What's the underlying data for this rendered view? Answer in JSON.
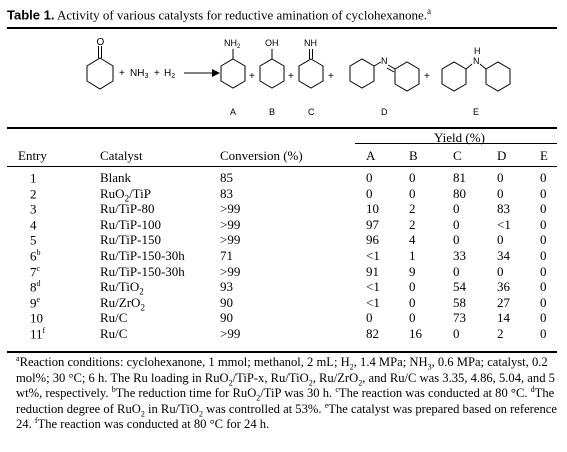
{
  "caption": {
    "label": "Table 1.",
    "text": " Activity of various catalysts for reductive amination of cyclohexanone.",
    "mark": "a"
  },
  "scheme": {
    "plus1": "+",
    "nh3": "NH",
    "nh3_sub": "3",
    "plus2": "+",
    "h2": "H",
    "h2_sub": "2",
    "groups": {
      "a": "NH",
      "a_sub": "2",
      "b": "OH",
      "c": "NH",
      "d": "N",
      "e": "H",
      "e2": "N"
    },
    "plus_signs": [
      "+",
      "+",
      "+",
      "+"
    ],
    "product_labels": [
      "A",
      "B",
      "C",
      "D",
      "E"
    ]
  },
  "table": {
    "yield_header": "Yield (%)",
    "columns": [
      "Entry",
      "Catalyst",
      "Conversion (%)",
      "A",
      "B",
      "C",
      "D",
      "E"
    ],
    "rows": [
      {
        "entry": "1",
        "entry_sup": "",
        "cat": "Blank",
        "cat_sub": "",
        "cat_tail": "",
        "conv": "85",
        "a": "0",
        "b": "0",
        "c": "81",
        "d": "0",
        "e": "0"
      },
      {
        "entry": "2",
        "entry_sup": "",
        "cat": "RuO",
        "cat_sub": "2",
        "cat_tail": "/TiP",
        "conv": "83",
        "a": "0",
        "b": "0",
        "c": "80",
        "d": "0",
        "e": "0"
      },
      {
        "entry": "3",
        "entry_sup": "",
        "cat": "Ru/TiP-80",
        "cat_sub": "",
        "cat_tail": "",
        "conv": ">99",
        "a": "10",
        "b": "2",
        "c": "0",
        "d": "83",
        "e": "0"
      },
      {
        "entry": "4",
        "entry_sup": "",
        "cat": "Ru/TiP-100",
        "cat_sub": "",
        "cat_tail": "",
        "conv": ">99",
        "a": "97",
        "b": "2",
        "c": "0",
        "d": "<1",
        "e": "0"
      },
      {
        "entry": "5",
        "entry_sup": "",
        "cat": "Ru/TiP-150",
        "cat_sub": "",
        "cat_tail": "",
        "conv": ">99",
        "a": "96",
        "b": "4",
        "c": "0",
        "d": "0",
        "e": "0"
      },
      {
        "entry": "6",
        "entry_sup": "b",
        "cat": "Ru/TiP-150-30h",
        "cat_sub": "",
        "cat_tail": "",
        "conv": "71",
        "a": "<1",
        "b": "1",
        "c": "33",
        "d": "34",
        "e": "0"
      },
      {
        "entry": "7",
        "entry_sup": "c",
        "cat": "Ru/TiP-150-30h",
        "cat_sub": "",
        "cat_tail": "",
        "conv": ">99",
        "a": "91",
        "b": "9",
        "c": "0",
        "d": "0",
        "e": "0"
      },
      {
        "entry": "8",
        "entry_sup": "d",
        "cat": "Ru/TiO",
        "cat_sub": "2",
        "cat_tail": "",
        "conv": "93",
        "a": "<1",
        "b": "0",
        "c": "54",
        "d": "36",
        "e": "0"
      },
      {
        "entry": "9",
        "entry_sup": "e",
        "cat": "Ru/ZrO",
        "cat_sub": "2",
        "cat_tail": "",
        "conv": "90",
        "a": "<1",
        "b": "0",
        "c": "58",
        "d": "27",
        "e": "0"
      },
      {
        "entry": "10",
        "entry_sup": "",
        "cat": "Ru/C",
        "cat_sub": "",
        "cat_tail": "",
        "conv": "90",
        "a": "0",
        "b": "0",
        "c": "73",
        "d": "14",
        "e": "0"
      },
      {
        "entry": "11",
        "entry_sup": "f",
        "cat": "Ru/C",
        "cat_sub": "",
        "cat_tail": "",
        "conv": ">99",
        "a": "82",
        "b": "16",
        "c": "0",
        "d": "2",
        "e": "0"
      }
    ]
  },
  "notes": {
    "a_mark": "a",
    "a1": "Reaction conditions: cyclohexanone, 1 mmol; methanol, 2 mL; H",
    "a_h2": "2",
    "a2": ", 1.4 MPa; NH",
    "a_nh3": "3",
    "a3": ", 0.6 MPa; catalyst, 0.2 mol%; 30 °C; 6 h. The Ru loading in RuO",
    "a_ruo": "2",
    "a4": "/TiP-x, Ru/TiO",
    "a_tio": "2",
    "a5": ", Ru/ZrO",
    "a_zro": "2",
    "a6": ", and Ru/C was 3.35, 4.86, 5.04, and 5 wt%, respectively. ",
    "b_mark": "b",
    "b1": "The reduction time for RuO",
    "b_ruo": "2",
    "b2": "/TiP was 30 h. ",
    "c_mark": "c",
    "c1": "The reaction was conducted at 80 °C. ",
    "d_mark": "d",
    "d1": "The reduction degree of RuO",
    "d_ruo": "2",
    "d2": " in Ru/TiO",
    "d_tio": "2",
    "d3": " was controlled at 53%. ",
    "e_mark": "e",
    "e1": "The catalyst was prepared based on reference 24. ",
    "f_mark": "f",
    "f1": "The reaction was conducted at 80 °C for 24 h."
  }
}
